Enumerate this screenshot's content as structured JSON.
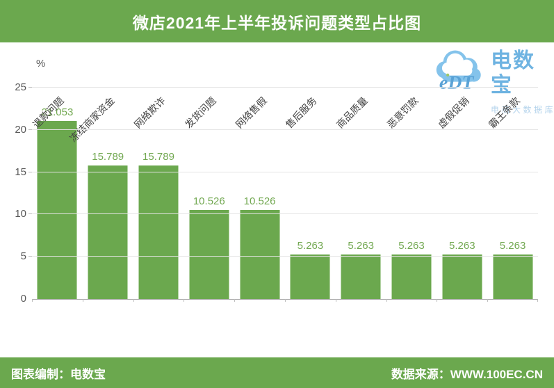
{
  "header": {
    "title": "微店2021年上半年投诉问题类型占比图"
  },
  "logo": {
    "cloud_text": "eDT",
    "brand": "电数宝",
    "subtitle": "电商大数据库"
  },
  "footer": {
    "left": "图表编制：电数宝",
    "right": "数据来源：WWW.100EC.CN"
  },
  "colors": {
    "band_green": "#6BA84E",
    "bar_green": "#6BA84E",
    "value_label_green": "#72a851",
    "axis_text_gray": "#595959",
    "gridline_gray": "#e4e4e4",
    "logo_blue": "#55a6dc"
  },
  "chart_data": {
    "type": "bar",
    "title": "微店2021年上半年投诉问题类型占比图",
    "unit_label": "%",
    "categories": [
      "退款问题",
      "冻结商家资金",
      "网络欺诈",
      "发货问题",
      "网络售假",
      "售后服务",
      "商品质量",
      "恶意罚款",
      "虚假促销",
      "霸王条款"
    ],
    "values": [
      21.053,
      15.789,
      15.789,
      10.526,
      10.526,
      5.263,
      5.263,
      5.263,
      5.263,
      5.263
    ],
    "value_labels": [
      "21.053",
      "15.789",
      "15.789",
      "10.526",
      "10.526",
      "5.263",
      "5.263",
      "5.263",
      "5.263",
      "5.263"
    ],
    "xlabel": "",
    "ylabel": "%",
    "ylim": [
      0,
      25
    ],
    "yticks": [
      0,
      5,
      10,
      15,
      20,
      25
    ],
    "grid": true,
    "legend": false,
    "bar_color": "#6BA84E"
  }
}
